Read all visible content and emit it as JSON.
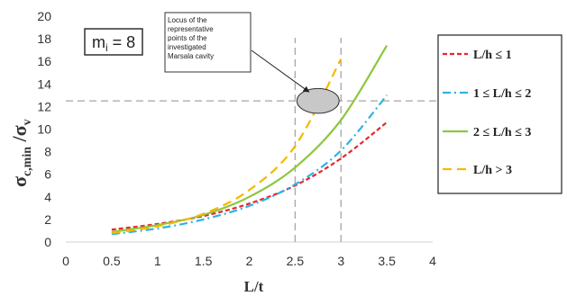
{
  "chart_data": {
    "type": "line",
    "xlabel": "L/t",
    "ylabel_main": "σ",
    "ylabel_sub": "c,min",
    "ylabel_sep": " /",
    "ylabel_den": "σ",
    "ylabel_den_sub": "v",
    "xlim": [
      0,
      4
    ],
    "ylim": [
      0,
      20
    ],
    "xticks": [
      "0",
      "0.5",
      "1",
      "1.5",
      "2",
      "2.5",
      "3",
      "3.5",
      "4"
    ],
    "yticks": [
      "0",
      "2",
      "4",
      "6",
      "8",
      "10",
      "12",
      "14",
      "16",
      "18",
      "20"
    ],
    "grid": false,
    "legend_position": "right",
    "series": [
      {
        "name": "L/h ≤ 1",
        "color": "#e8262b",
        "dash": "short-dash",
        "x": [
          0.5,
          1.0,
          1.5,
          2.0,
          2.5,
          3.0,
          3.5
        ],
        "y": [
          1.1,
          1.6,
          2.3,
          3.4,
          5.0,
          7.4,
          10.6
        ]
      },
      {
        "name": "1 ≤ L/h ≤ 2",
        "color": "#2db3e8",
        "dash": "dash-dot",
        "x": [
          0.5,
          1.0,
          1.5,
          2.0,
          2.5,
          3.0,
          3.5
        ],
        "y": [
          0.7,
          1.2,
          2.0,
          3.2,
          5.1,
          8.1,
          13.0
        ]
      },
      {
        "name": "2 ≤ L/h ≤ 3",
        "color": "#8dc63f",
        "dash": "solid",
        "x": [
          0.5,
          1.0,
          1.5,
          2.0,
          2.5,
          3.0,
          3.5
        ],
        "y": [
          0.9,
          1.5,
          2.4,
          4.0,
          6.6,
          10.8,
          17.4
        ]
      },
      {
        "name": "L/h > 3",
        "color": "#f5b800",
        "dash": "long-dash",
        "x": [
          0.5,
          1.0,
          1.5,
          2.0,
          2.5,
          3.0
        ],
        "y": [
          0.8,
          1.4,
          2.5,
          4.6,
          8.5,
          16.2
        ]
      }
    ],
    "reference_lines": {
      "vertical_x": [
        2.5,
        3.0
      ],
      "horizontal_y": [
        12.5
      ],
      "color": "#a6a6a6"
    },
    "locus_ellipse": {
      "cx": 2.75,
      "cy": 12.5,
      "rx": 0.23,
      "ry": 1.1,
      "fill": "#c8c8c8"
    },
    "annotation": {
      "lines": [
        "Locus of the",
        "representative",
        "points of the",
        "investigated",
        "Marsala cavity"
      ],
      "arrow_to": {
        "x": 2.65,
        "y": 13.3
      }
    },
    "mi_label": {
      "main": "m",
      "sub": "i",
      "rest": " = 8"
    }
  }
}
